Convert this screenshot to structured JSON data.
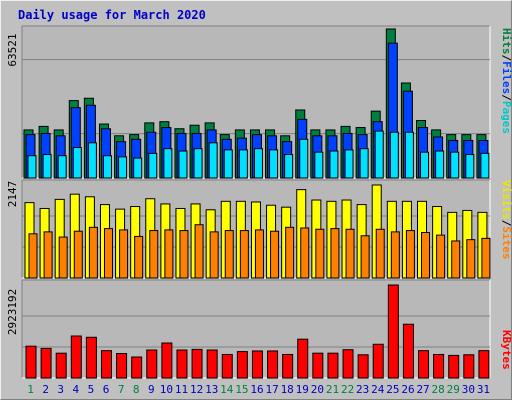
{
  "title": "Daily usage for March 2020",
  "colors": {
    "background": "#c0c0c0",
    "panel": "#b8b8b8",
    "hits": "#008040",
    "files": "#0040ff",
    "pages": "#00e0ff",
    "visits": "#ffff00",
    "sites": "#ff8000",
    "kbytes": "#ff0000",
    "weekend_label": "#008040",
    "weekday_label": "#0000c0",
    "title": "#0000c8"
  },
  "chart_data": [
    {
      "type": "bar",
      "name": "hits-files-pages",
      "max_label": "63521",
      "ylim": [
        0,
        63521
      ],
      "legend": [
        {
          "text": "Pages",
          "color": "#00c8c8"
        },
        {
          "text": "/",
          "color": "#000000"
        },
        {
          "text": "Files",
          "color": "#0040ff"
        },
        {
          "text": "/",
          "color": "#000000"
        },
        {
          "text": "Hits",
          "color": "#008040"
        }
      ],
      "series": [
        {
          "name": "Hits",
          "color": "#008040",
          "values": [
            20500,
            22000,
            20500,
            33000,
            34000,
            23000,
            18000,
            18500,
            23500,
            24000,
            21000,
            22500,
            23500,
            18500,
            20500,
            20500,
            20500,
            18000,
            29000,
            20500,
            20500,
            22000,
            21500,
            28500,
            63521,
            40500,
            24500,
            20500,
            18500,
            18500,
            18500
          ]
        },
        {
          "name": "Files",
          "color": "#0040ff",
          "values": [
            18500,
            19000,
            18000,
            30000,
            31000,
            21000,
            15500,
            16500,
            19500,
            21500,
            19000,
            19000,
            20500,
            16500,
            17000,
            18500,
            18000,
            15500,
            25000,
            18000,
            18000,
            19000,
            18500,
            24000,
            57500,
            37000,
            21500,
            17500,
            16000,
            16000,
            16000
          ]
        },
        {
          "name": "Pages",
          "color": "#00e0ff",
          "values": [
            9500,
            10000,
            9500,
            13000,
            15000,
            9500,
            9000,
            8500,
            10500,
            12500,
            11500,
            12500,
            15000,
            12000,
            12000,
            12500,
            12000,
            10000,
            16500,
            11000,
            11500,
            12000,
            12500,
            20000,
            19500,
            19500,
            11000,
            11500,
            11000,
            10000,
            10500
          ]
        }
      ]
    },
    {
      "type": "bar",
      "name": "visits-sites",
      "max_label": "2147",
      "ylim": [
        0,
        2147
      ],
      "legend": [
        {
          "text": "Sites",
          "color": "#ff8000"
        },
        {
          "text": "/",
          "color": "#000000"
        },
        {
          "text": "Visits",
          "color": "#e8e800"
        }
      ],
      "series": [
        {
          "name": "Visits",
          "color": "#ffff00",
          "values": [
            1740,
            1605,
            1815,
            1935,
            1875,
            1695,
            1590,
            1650,
            1830,
            1710,
            1605,
            1710,
            1575,
            1770,
            1770,
            1755,
            1680,
            1635,
            2040,
            1800,
            1770,
            1800,
            1695,
            2147,
            1770,
            1770,
            1770,
            1650,
            1515,
            1560,
            1515
          ]
        },
        {
          "name": "Sites",
          "color": "#ff8000",
          "values": [
            1020,
            1065,
            945,
            1080,
            1170,
            1140,
            1110,
            960,
            1095,
            1110,
            1095,
            1230,
            1065,
            1095,
            1095,
            1110,
            1080,
            1170,
            1155,
            1125,
            1140,
            1125,
            975,
            1125,
            1065,
            1095,
            1050,
            990,
            855,
            885,
            915
          ]
        }
      ]
    },
    {
      "type": "bar",
      "name": "kbytes",
      "max_label": "2923192",
      "ylim": [
        0,
        2923192
      ],
      "legend": [
        {
          "text": "KBytes",
          "color": "#ff0000"
        }
      ],
      "series": [
        {
          "name": "KBytes",
          "color": "#ff0000",
          "values": [
            1000000,
            930000,
            780000,
            1320000,
            1280000,
            860000,
            770000,
            660000,
            880000,
            1100000,
            880000,
            900000,
            880000,
            740000,
            830000,
            850000,
            850000,
            740000,
            1220000,
            780000,
            780000,
            890000,
            730000,
            1060000,
            2923192,
            1690000,
            860000,
            740000,
            710000,
            730000,
            860000
          ]
        }
      ]
    }
  ],
  "x_labels": [
    "1",
    "2",
    "3",
    "4",
    "5",
    "6",
    "7",
    "8",
    "9",
    "10",
    "11",
    "12",
    "13",
    "14",
    "15",
    "16",
    "17",
    "18",
    "19",
    "20",
    "21",
    "22",
    "23",
    "24",
    "25",
    "26",
    "27",
    "28",
    "29",
    "30",
    "31"
  ],
  "weekend_days": [
    "1",
    "7",
    "8",
    "14",
    "15",
    "21",
    "22",
    "28",
    "29"
  ]
}
